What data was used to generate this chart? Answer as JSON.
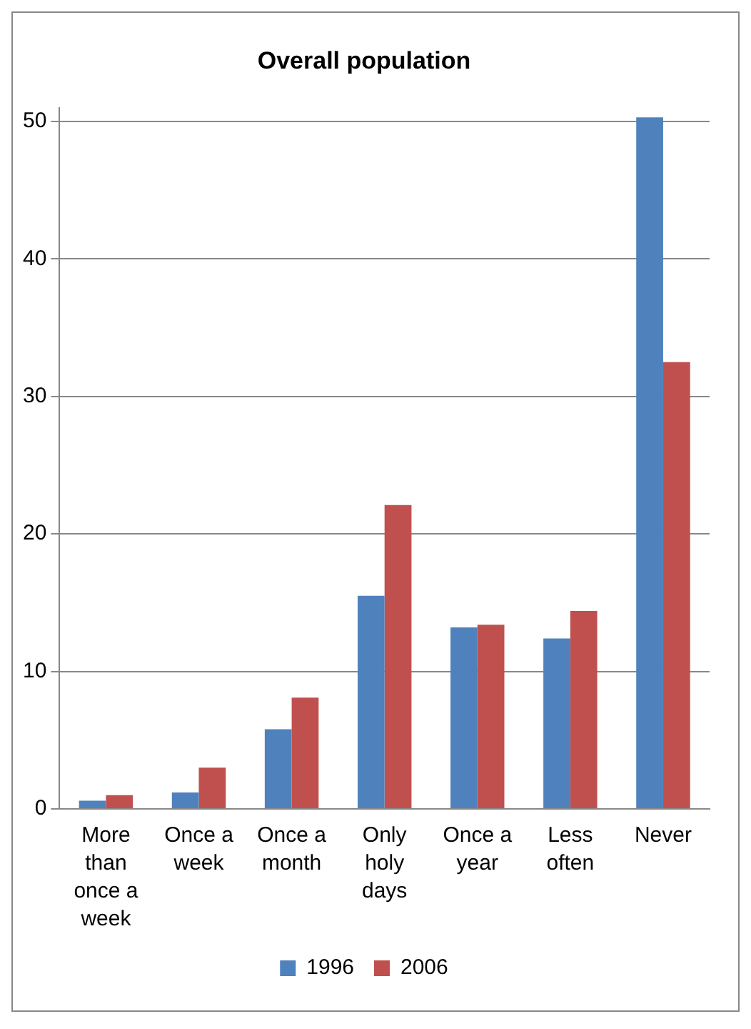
{
  "chart_data": {
    "type": "bar",
    "title": "Overall population",
    "categories": [
      "More than once a week",
      "Once a week",
      "Once a month",
      "Only holy days",
      "Once a year",
      "Less often",
      "Never"
    ],
    "series": [
      {
        "name": "1996",
        "color": "#4f81bd",
        "values": [
          0.6,
          1.2,
          5.8,
          15.5,
          13.2,
          12.4,
          50.3
        ]
      },
      {
        "name": "2006",
        "color": "#c0504d",
        "values": [
          1.0,
          3.0,
          8.1,
          22.1,
          13.4,
          14.4,
          32.5
        ]
      }
    ],
    "ylim": [
      0,
      51
    ],
    "yticks": [
      0,
      10,
      20,
      30,
      40,
      50
    ],
    "grid": "y",
    "legend": "bottom"
  }
}
